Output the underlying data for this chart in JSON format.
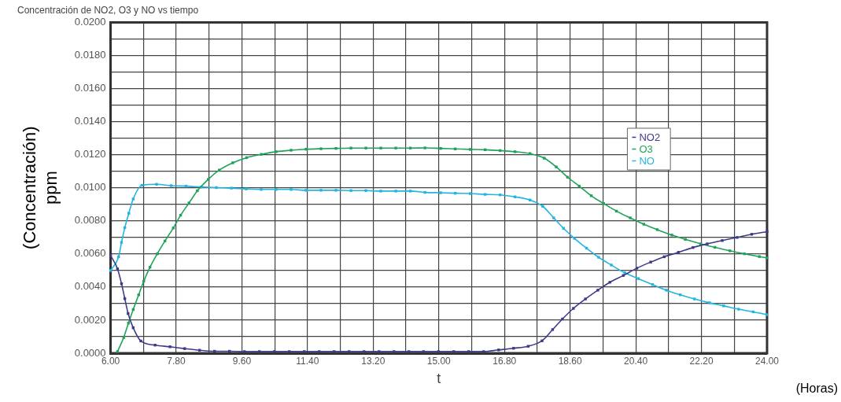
{
  "chart_data": {
    "type": "line",
    "title": "Concentración de NO2, O3 y NO vs tiempo",
    "xlabel": "t",
    "ylabel": "(Concentración)\nppm",
    "annotations": [
      "(Horas)"
    ],
    "xlim": [
      6,
      24
    ],
    "xticks": [
      {
        "value": 6,
        "label": "6.00"
      },
      {
        "value": 6.9,
        "label": null
      },
      {
        "value": 7.8,
        "label": "7.80"
      },
      {
        "value": 8.7,
        "label": null
      },
      {
        "value": 9.6,
        "label": "9.60"
      },
      {
        "value": 10.5,
        "label": null
      },
      {
        "value": 11.4,
        "label": "11.40"
      },
      {
        "value": 12.3,
        "label": null
      },
      {
        "value": 13.2,
        "label": "13.20"
      },
      {
        "value": 14.1,
        "label": null
      },
      {
        "value": 15,
        "label": "15.00"
      },
      {
        "value": 15.9,
        "label": null
      },
      {
        "value": 16.8,
        "label": "16.80"
      },
      {
        "value": 17.7,
        "label": null
      },
      {
        "value": 18.6,
        "label": "18.60"
      },
      {
        "value": 19.5,
        "label": null
      },
      {
        "value": 20.4,
        "label": "20.40"
      },
      {
        "value": 21.3,
        "label": null
      },
      {
        "value": 22.2,
        "label": "22.20"
      },
      {
        "value": 23.1,
        "label": null
      },
      {
        "value": 24,
        "label": "24.00"
      }
    ],
    "ylim": [
      0,
      0.02
    ],
    "yticks": [
      {
        "value": 0,
        "label": "0.0000"
      },
      {
        "value": 0.001,
        "label": null
      },
      {
        "value": 0.002,
        "label": "0.0020"
      },
      {
        "value": 0.003,
        "label": null
      },
      {
        "value": 0.004,
        "label": "0.0040"
      },
      {
        "value": 0.005,
        "label": null
      },
      {
        "value": 0.006,
        "label": "0.0060"
      },
      {
        "value": 0.007,
        "label": null
      },
      {
        "value": 0.008,
        "label": "0.0080"
      },
      {
        "value": 0.009,
        "label": null
      },
      {
        "value": 0.01,
        "label": "0.0100"
      },
      {
        "value": 0.011,
        "label": null
      },
      {
        "value": 0.012,
        "label": "0.0120"
      },
      {
        "value": 0.013,
        "label": null
      },
      {
        "value": 0.014,
        "label": "0.0140"
      },
      {
        "value": 0.015,
        "label": null
      },
      {
        "value": 0.016,
        "label": "0.0160"
      },
      {
        "value": 0.017,
        "label": null
      },
      {
        "value": 0.018,
        "label": "0.0180"
      },
      {
        "value": 0.019,
        "label": null
      },
      {
        "value": 0.02,
        "label": "0.0200"
      }
    ],
    "grid": true,
    "legend": "right",
    "marker": "square",
    "line_style": "solid",
    "series": [
      {
        "name": "NO2",
        "color": "#3d3a8a",
        "x": [
          6.0,
          6.19,
          6.3,
          6.39,
          6.48,
          6.62,
          6.83,
          7.22,
          7.63,
          8.03,
          8.44,
          8.85,
          9.26,
          9.67,
          10.08,
          10.49,
          10.9,
          11.31,
          11.72,
          12.13,
          12.54,
          12.95,
          13.36,
          13.77,
          14.18,
          14.58,
          14.99,
          15.41,
          15.82,
          16.23,
          16.64,
          17.05,
          17.45,
          17.83,
          18.12,
          18.39,
          18.69,
          19.02,
          19.36,
          19.69,
          20.06,
          20.43,
          20.81,
          21.18,
          21.57,
          21.97,
          22.36,
          22.77,
          23.18,
          23.58,
          24.0
        ],
        "values": [
          0.0059,
          0.0051,
          0.0042,
          0.0033,
          0.0024,
          0.00154,
          0.00074,
          0.00049,
          0.00039,
          0.00028,
          0.00018,
          0.00012,
          0.00012,
          0.0001,
          0.0001,
          0.0001,
          0.0001,
          0.0001,
          0.0001,
          0.0001,
          0.0001,
          0.0001,
          0.0001,
          0.0001,
          0.0001,
          0.0001,
          0.0001,
          0.0001,
          0.0001,
          0.0001,
          0.0002,
          0.0003,
          0.00042,
          0.00075,
          0.00143,
          0.00207,
          0.00271,
          0.00328,
          0.00381,
          0.00429,
          0.0047,
          0.00514,
          0.00551,
          0.00583,
          0.0061,
          0.00639,
          0.00661,
          0.00681,
          0.007,
          0.00719,
          0.00735
        ]
      },
      {
        "name": "O3",
        "color": "#1fa35a",
        "x": [
          6.19,
          6.36,
          6.49,
          6.62,
          6.77,
          6.91,
          7.08,
          7.28,
          7.49,
          7.72,
          7.92,
          8.15,
          8.38,
          8.68,
          8.98,
          9.35,
          9.73,
          10.13,
          10.54,
          10.95,
          11.36,
          11.77,
          12.18,
          12.59,
          13.0,
          13.41,
          13.82,
          14.22,
          14.62,
          15.05,
          15.45,
          15.86,
          16.27,
          16.68,
          17.09,
          17.5,
          17.89,
          18.22,
          18.53,
          18.85,
          19.18,
          19.52,
          19.87,
          20.25,
          20.62,
          20.99,
          21.39,
          21.76,
          22.18,
          22.57,
          22.98,
          23.38,
          23.79,
          24.0
        ],
        "values": [
          0.0001,
          0.00095,
          0.00182,
          0.00264,
          0.00353,
          0.00435,
          0.0052,
          0.00601,
          0.00678,
          0.00757,
          0.00834,
          0.00908,
          0.00982,
          0.01051,
          0.01107,
          0.01151,
          0.01182,
          0.01202,
          0.01218,
          0.01227,
          0.01233,
          0.01236,
          0.01238,
          0.0124,
          0.0124,
          0.0124,
          0.0124,
          0.0124,
          0.01241,
          0.01238,
          0.01235,
          0.01232,
          0.0123,
          0.01225,
          0.01218,
          0.01207,
          0.01179,
          0.01126,
          0.01064,
          0.0101,
          0.00952,
          0.00905,
          0.00859,
          0.00818,
          0.0078,
          0.00747,
          0.00714,
          0.00688,
          0.00661,
          0.0064,
          0.00619,
          0.00601,
          0.00584,
          0.00576
        ]
      },
      {
        "name": "NO",
        "color": "#22b5e0",
        "x": [
          6.0,
          6.22,
          6.3,
          6.39,
          6.5,
          6.62,
          6.86,
          7.26,
          7.66,
          8.07,
          8.49,
          8.9,
          9.31,
          9.72,
          10.13,
          10.54,
          10.95,
          11.36,
          11.77,
          12.18,
          12.59,
          13.0,
          13.41,
          13.82,
          14.22,
          14.62,
          15.05,
          15.45,
          15.86,
          16.27,
          16.68,
          17.09,
          17.5,
          17.85,
          18.15,
          18.42,
          18.72,
          19.05,
          19.38,
          19.73,
          20.1,
          20.47,
          20.86,
          21.24,
          21.62,
          22.01,
          22.42,
          22.81,
          23.22,
          23.62,
          24.0
        ],
        "values": [
          0.005,
          0.00583,
          0.0067,
          0.00759,
          0.00846,
          0.00932,
          0.01015,
          0.01021,
          0.01013,
          0.0101,
          0.01005,
          0.01001,
          0.00998,
          0.00993,
          0.0099,
          0.0099,
          0.0099,
          0.00985,
          0.00985,
          0.00985,
          0.00983,
          0.00983,
          0.0098,
          0.0098,
          0.0098,
          0.00972,
          0.0097,
          0.00967,
          0.00965,
          0.0096,
          0.00957,
          0.00945,
          0.00926,
          0.00888,
          0.00818,
          0.00755,
          0.00694,
          0.00635,
          0.0058,
          0.00533,
          0.00486,
          0.00451,
          0.00415,
          0.00381,
          0.00353,
          0.00328,
          0.00305,
          0.00286,
          0.00266,
          0.0025,
          0.00233
        ]
      }
    ]
  }
}
